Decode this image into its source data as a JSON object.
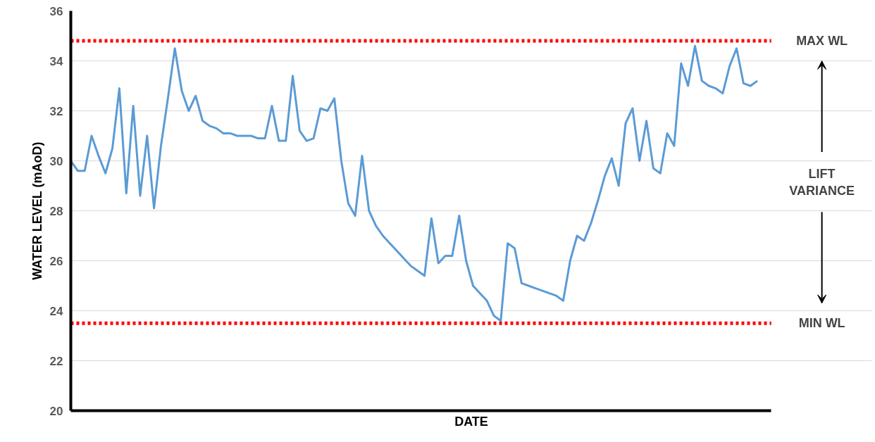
{
  "chart_data": {
    "type": "line",
    "xlabel": "DATE",
    "ylabel": "WATER LEVEL (mAoD)",
    "categories": [
      null,
      null,
      null,
      null,
      null,
      null,
      null,
      null,
      null,
      null,
      null,
      null,
      null,
      null,
      null,
      null,
      null,
      null,
      null,
      null,
      null,
      null,
      null,
      null,
      null,
      null,
      null,
      null,
      null,
      null,
      null,
      null,
      null,
      null,
      null,
      null,
      null,
      null,
      null,
      null,
      null,
      null,
      null,
      null,
      null,
      null,
      null,
      null,
      null,
      null,
      null,
      null,
      null,
      null,
      null,
      null,
      null,
      null,
      null,
      null,
      null,
      null,
      null,
      null,
      null,
      null,
      null,
      null,
      null,
      null,
      null,
      null,
      null,
      null,
      null,
      null,
      null,
      null,
      null,
      null,
      null,
      null,
      null,
      null,
      null,
      null,
      null,
      null,
      null,
      null,
      null,
      null,
      null,
      null,
      null,
      null,
      null,
      null,
      null,
      null
    ],
    "series": [
      {
        "color": "#5b9bd5",
        "values": [
          30.0,
          29.6,
          29.6,
          31.0,
          30.2,
          29.5,
          30.5,
          32.9,
          28.7,
          32.2,
          28.6,
          31.0,
          28.1,
          30.6,
          32.5,
          34.5,
          32.8,
          32.0,
          32.6,
          31.6,
          31.4,
          31.3,
          31.1,
          31.1,
          31.0,
          31.0,
          31.0,
          30.9,
          30.9,
          32.2,
          30.8,
          30.8,
          33.4,
          31.2,
          30.8,
          30.9,
          32.1,
          32.0,
          32.5,
          30.0,
          28.3,
          27.8,
          30.2,
          28.0,
          27.4,
          27.0,
          26.7,
          26.4,
          26.1,
          25.8,
          25.6,
          25.4,
          27.7,
          25.9,
          26.2,
          26.2,
          27.8,
          26.0,
          25.0,
          24.7,
          24.4,
          23.8,
          23.6,
          26.7,
          26.5,
          25.1,
          25.0,
          24.9,
          24.8,
          24.7,
          24.6,
          24.4,
          26.0,
          27.0,
          26.8,
          27.5,
          28.4,
          29.4,
          30.1,
          29.0,
          31.5,
          32.1,
          30.0,
          31.6,
          29.7,
          29.5,
          31.1,
          30.6,
          33.9,
          33.0,
          34.6,
          33.2,
          33.0,
          32.9,
          32.7,
          33.8,
          34.5,
          33.1,
          33.0,
          33.2
        ]
      }
    ],
    "ylim": [
      20,
      36
    ],
    "yticks": [
      20,
      22,
      24,
      26,
      28,
      30,
      32,
      34,
      36
    ],
    "grid": "y",
    "line_style": "solid",
    "marker": "none",
    "ref_lines": [
      {
        "axis": "y",
        "value": 34.8,
        "label": "MAX WL",
        "color": "#ff0000",
        "line_style": "dotted"
      },
      {
        "axis": "y",
        "value": 23.5,
        "label": "MIN WL",
        "color": "#ff0000",
        "line_style": "dotted"
      }
    ],
    "annotations": [
      "LIFT VARIANCE"
    ]
  }
}
